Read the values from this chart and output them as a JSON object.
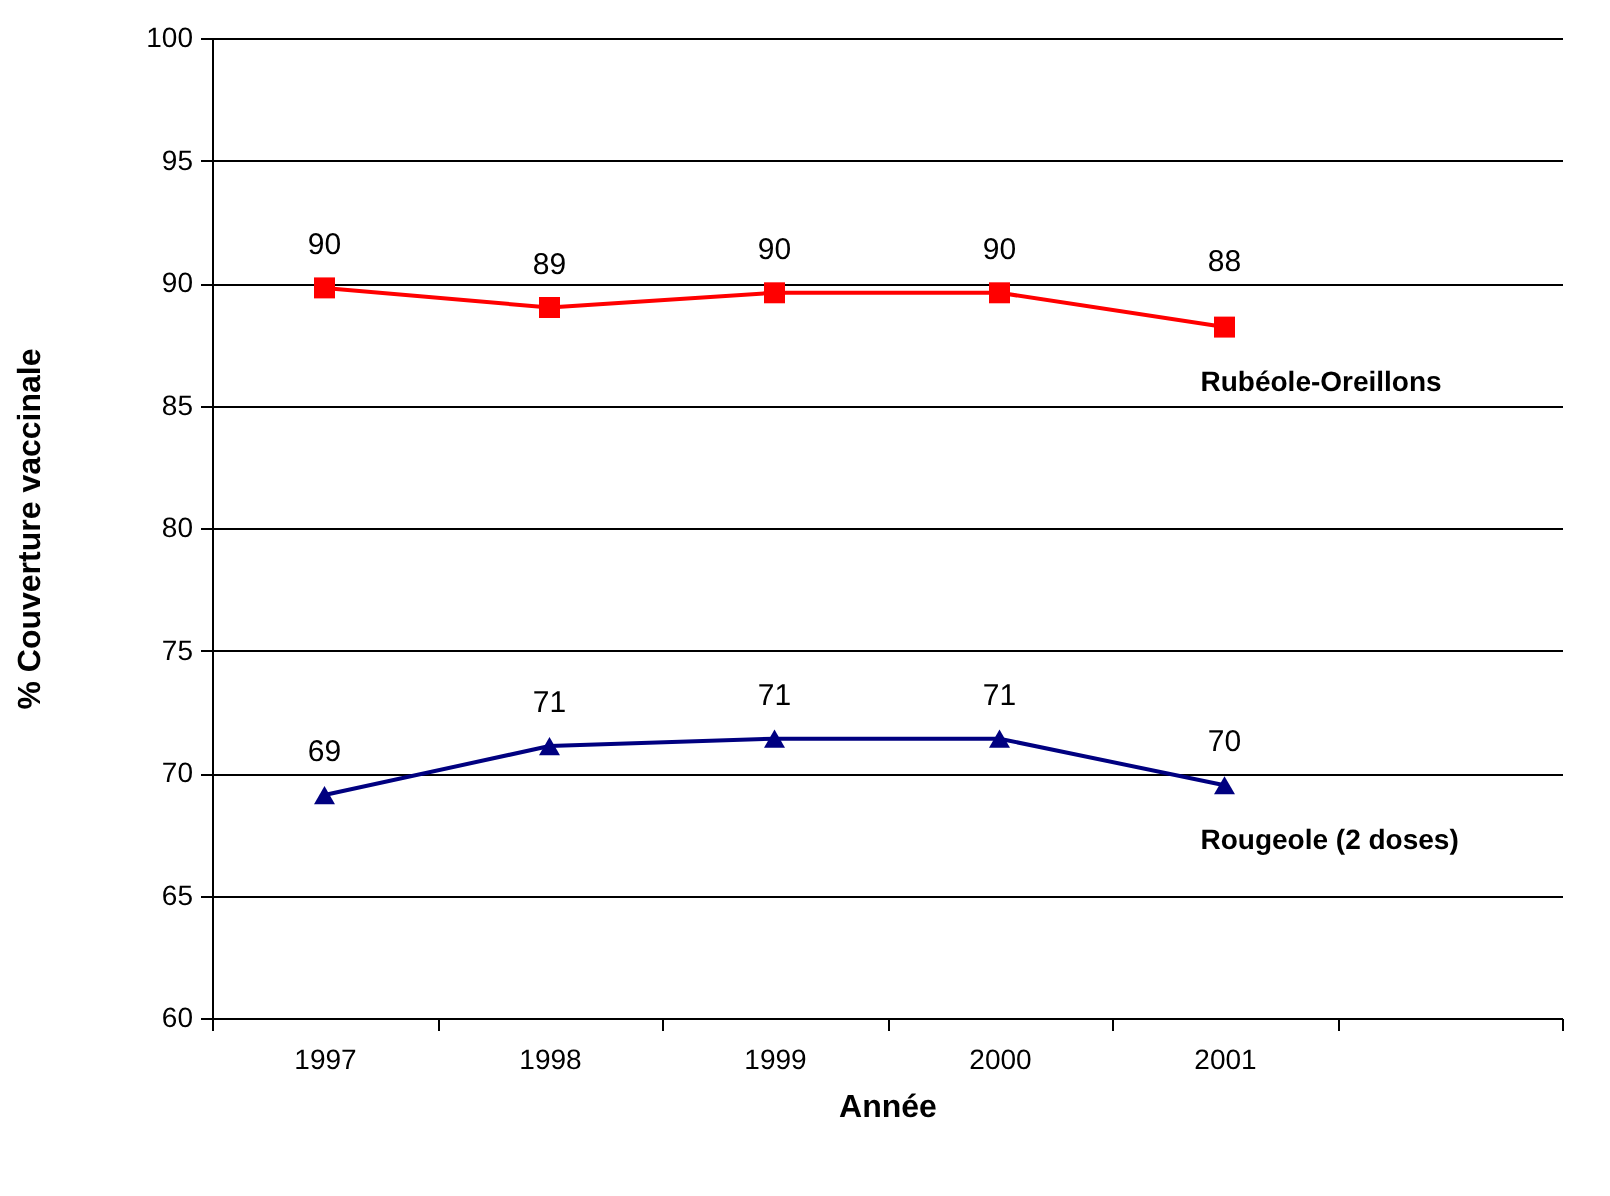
{
  "chart_data": {
    "type": "line",
    "xlabel": "Année",
    "ylabel": "% Couverture vaccinale",
    "categories": [
      "1997",
      "1998",
      "1999",
      "2000",
      "2001",
      null
    ],
    "series": [
      {
        "name": "Rubéole-Oreillons",
        "color": "#ff0000",
        "marker": "square",
        "values": [
          89.8,
          89.0,
          89.6,
          89.6,
          88.2,
          null
        ],
        "value_labels": [
          "90",
          "89",
          "90",
          "90",
          "88",
          null
        ]
      },
      {
        "name": "Rougeole (2 doses)",
        "color": "#000080",
        "marker": "triangle",
        "values": [
          69.1,
          71.1,
          71.4,
          71.4,
          69.5,
          null
        ],
        "value_labels": [
          "69",
          "71",
          "71",
          "71",
          "70",
          null
        ]
      }
    ],
    "ylim": [
      60,
      100
    ],
    "yticks": [
      60,
      65,
      70,
      75,
      80,
      85,
      90,
      95,
      100
    ],
    "grid": "y"
  }
}
